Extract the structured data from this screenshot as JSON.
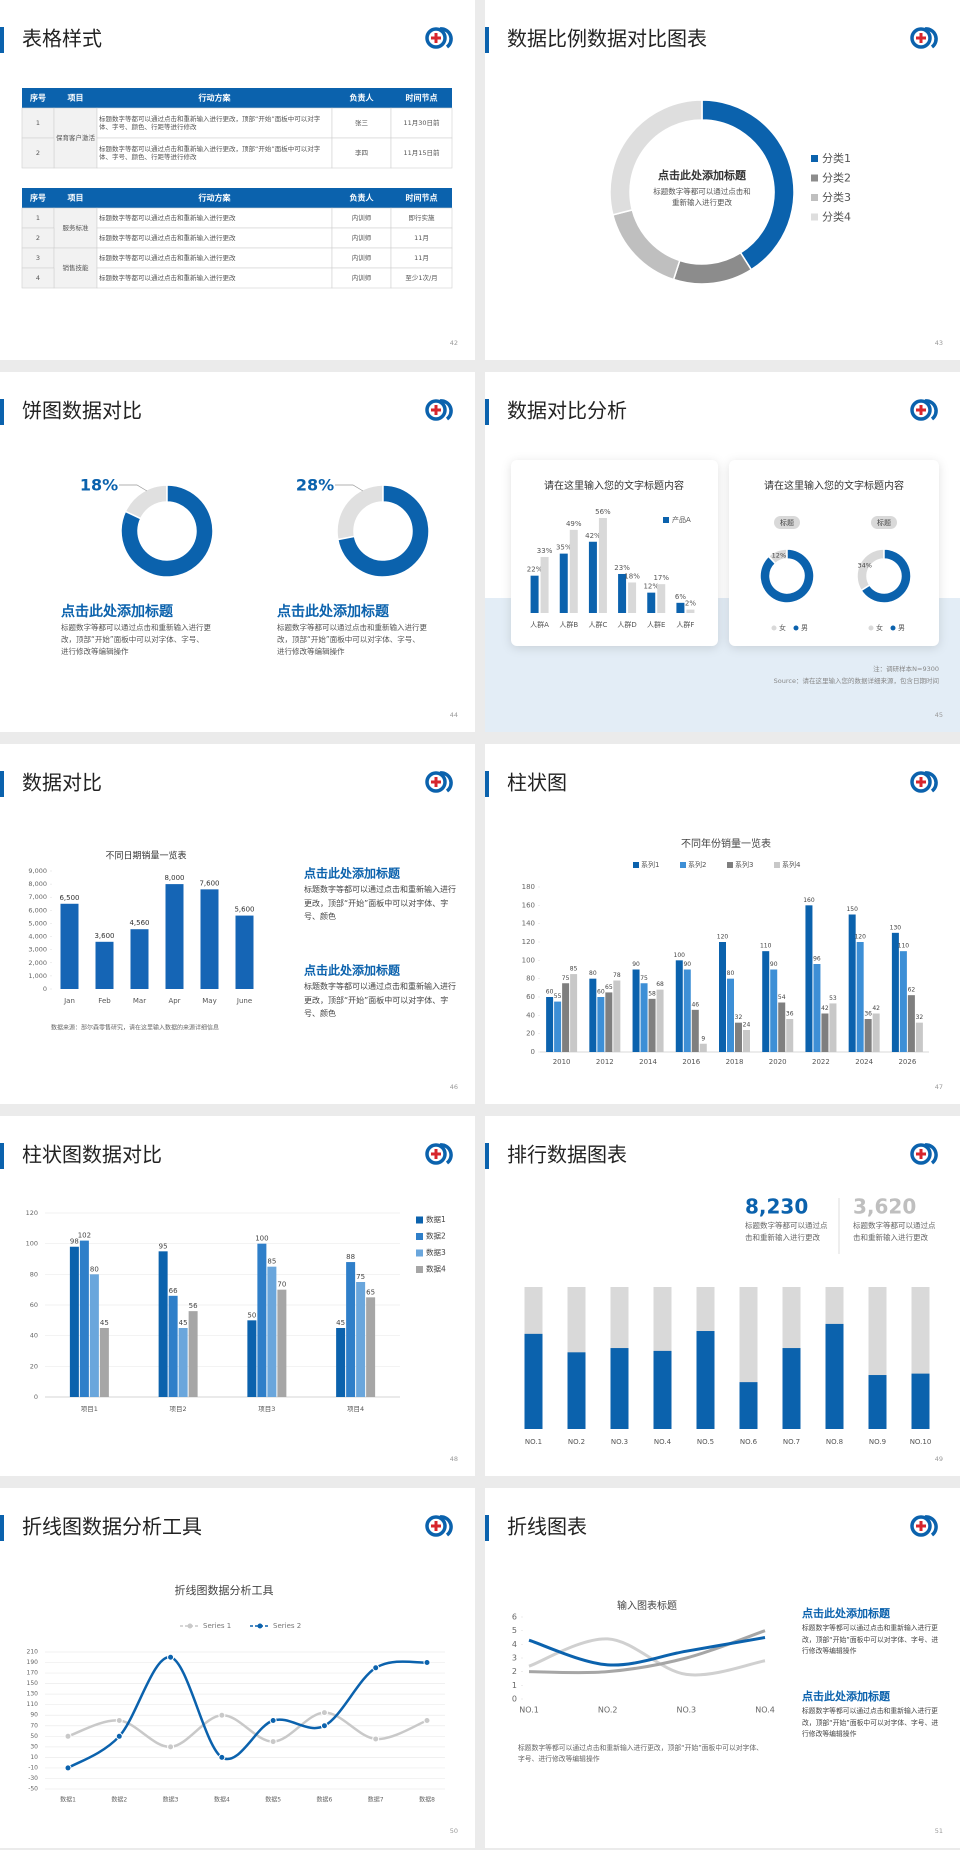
{
  "slides": [
    {
      "title": "表格样式",
      "page": "42",
      "tables": [
        {
          "header": [
            "序号",
            "项目",
            "行动方案",
            "负责人",
            "时间节点"
          ],
          "rows": [
            [
              "1",
              "保育客户激活",
              "标题数字等都可以通过点击和重新输入进行更改，顶部“开始”面板中可以对字体、字号、颜色、行距等进行修改",
              "张三",
              "11月30日前"
            ],
            [
              "2",
              null,
              "标题数字等都可以通过点击和重新输入进行更改，顶部“开始”面板中可以对字体、字号、颜色、行距等进行修改",
              "李四",
              "11月15日前"
            ]
          ]
        },
        {
          "header": [
            "序号",
            "项目",
            "行动方案",
            "负责人",
            "时间节点"
          ],
          "rows": [
            [
              "1",
              "服务标准",
              "标题数字等都可以通过点击和重新输入进行更改",
              "内训师",
              "即行实施"
            ],
            [
              "2",
              null,
              "标题数字等都可以通过点击和重新输入进行更改",
              "内训师",
              "11月"
            ],
            [
              "3",
              "销售技能",
              "标题数字等都可以通过点击和重新输入进行更改",
              "内训师",
              "11月"
            ],
            [
              "4",
              null,
              "标题数字等都可以通过点击和重新输入进行更改",
              "内训师",
              "至少1次/月"
            ]
          ]
        }
      ]
    },
    {
      "title": "数据比例数据对比图表",
      "page": "43",
      "chart": {
        "type": "donut",
        "heading": "点击此处添加标题",
        "text": "标题数字等都可以通过点击和重新输入进行更改",
        "categories": [
          "分类1",
          "分类2",
          "分类3",
          "分类4"
        ],
        "values": [
          41,
          14,
          16,
          29
        ],
        "colors": [
          "#0b62ad",
          "#8c8c8c",
          "#bfbfbf",
          "#dedede"
        ]
      }
    },
    {
      "title": "饼图数据对比",
      "page": "44",
      "charts": [
        {
          "type": "donut",
          "label": "18%",
          "values": [
            18,
            82
          ],
          "colors": [
            "#e0e0e0",
            "#0b62ad"
          ],
          "heading": "点击此处添加标题",
          "text": "标题数字等都可以通过点击和重新输入进行更改，顶部“开始”面板中可以对字体、字号、进行修改等编辑操作"
        },
        {
          "type": "donut",
          "label": "28%",
          "values": [
            28,
            72
          ],
          "colors": [
            "#e0e0e0",
            "#0b62ad"
          ],
          "heading": "点击此处添加标题",
          "text": "标题数字等都可以通过点击和重新输入进行更改，顶部“开始”面板中可以对字体、字号、进行修改等编辑操作"
        }
      ]
    },
    {
      "title": "数据对比分析",
      "page": "45",
      "bar_card": {
        "title": "请在这里输入您的文字标题内容",
        "chart": {
          "type": "bar",
          "categories": [
            "人群A",
            "人群B",
            "人群C",
            "人群D",
            "人群E",
            "人群F"
          ],
          "series": [
            {
              "name": "产品A",
              "color": "#0b62ad",
              "values": [
                22,
                35,
                42,
                23,
                12,
                6
              ],
              "value_labels": [
                "22%",
                "35%",
                "42%",
                "23%",
                "12%",
                "6%"
              ]
            },
            {
              "color": "#d9d9d9",
              "values": [
                33,
                49,
                56,
                18,
                17,
                2
              ],
              "value_labels": [
                "33%",
                "49%",
                "56%",
                "18%",
                "17%",
                "2%"
              ]
            }
          ]
        }
      },
      "donut_card": {
        "title": "请在这里输入您的文字标题内容",
        "categories": [
          "女",
          "男"
        ],
        "colors": [
          "#d9d9d9",
          "#0b62ad"
        ],
        "donuts": [
          {
            "type": "donut",
            "tag": "标题",
            "values": [
              12,
              88
            ],
            "label": "12%"
          },
          {
            "type": "donut",
            "tag": "标题",
            "values": [
              34,
              66
            ],
            "label": "34%"
          }
        ]
      },
      "notes": [
        "注：调研样本N=9300",
        "Source：请在这里输入您的数据详细来源，包含日期时间"
      ]
    },
    {
      "title": "数据对比",
      "page": "46",
      "chart": {
        "type": "bar",
        "title": "不同日期销量一览表",
        "categories": [
          "Jan",
          "Feb",
          "Mar",
          "Apr",
          "May",
          "June"
        ],
        "values": [
          6500,
          3600,
          4560,
          8000,
          7600,
          5600
        ],
        "value_labels": [
          "6,500",
          "3,600",
          "4,560",
          "8,000",
          "7,600",
          "5,600"
        ],
        "color": "#1565b5",
        "ylim": [
          0,
          9000
        ],
        "yticks": [
          0,
          {
            "value": 1000,
            "label": "1,000"
          },
          {
            "value": 2000,
            "label": "2,000"
          },
          {
            "value": 3000,
            "label": "3,000"
          },
          {
            "value": 4000,
            "label": "4,000"
          },
          {
            "value": 5000,
            "label": "5,000"
          },
          {
            "value": 6000,
            "label": "6,000"
          },
          {
            "value": 7000,
            "label": "7,000"
          },
          {
            "value": 8000,
            "label": "8,000"
          },
          {
            "value": 9000,
            "label": "9,000"
          }
        ],
        "grid": false,
        "source": "数据来源：部尔森零售研究，请在这里输入数据的来源详细信息"
      },
      "blocks": [
        {
          "heading": "点击此处添加标题",
          "text": "标题数字等都可以通过点击和重新输入进行更改，顶部“开始”面板中可以对字体、字号、颜色"
        },
        {
          "heading": "点击此处添加标题",
          "text": "标题数字等都可以通过点击和重新输入进行更改，顶部“开始”面板中可以对字体、字号、颜色"
        }
      ]
    },
    {
      "title": "柱状图",
      "page": "47",
      "chart": {
        "type": "bar",
        "title": "不同年份销量一览表",
        "categories": [
          "2010",
          "2012",
          "2014",
          "2016",
          "2018",
          "2020",
          "2022",
          "2024",
          "2026"
        ],
        "series": [
          {
            "name": "系列1",
            "color": "#0b62ad",
            "values": [
              60,
              80,
              90,
              100,
              120,
              110,
              160,
              150,
              130
            ]
          },
          {
            "name": "系列2",
            "color": "#3d8fd6",
            "values": [
              55,
              60,
              75,
              90,
              80,
              90,
              96,
              120,
              110
            ]
          },
          {
            "name": "系列3",
            "color": "#7f7f7f",
            "values": [
              75,
              65,
              58,
              46,
              32,
              54,
              42,
              36,
              62
            ]
          },
          {
            "name": "系列4",
            "color": "#c8c8c8",
            "values": [
              85,
              78,
              68,
              9,
              24,
              36,
              53,
              42,
              32
            ]
          }
        ],
        "ylim": [
          0,
          180
        ],
        "yticks": [
          0,
          20,
          40,
          60,
          80,
          100,
          120,
          140,
          160,
          180
        ],
        "grid": false
      }
    },
    {
      "title": "柱状图数据对比",
      "page": "48",
      "chart": {
        "type": "bar",
        "categories": [
          "项目1",
          "项目2",
          "项目3",
          "项目4"
        ],
        "series": [
          {
            "name": "数据1",
            "color": "#0b62ad",
            "values": [
              98,
              95,
              50,
              45
            ]
          },
          {
            "name": "数据2",
            "color": "#2f7fc9",
            "values": [
              102,
              66,
              100,
              88
            ]
          },
          {
            "name": "数据3",
            "color": "#6aa6dc",
            "values": [
              80,
              45,
              85,
              75
            ]
          },
          {
            "name": "数据4",
            "color": "#a6a6a6",
            "values": [
              45,
              56,
              70,
              65
            ]
          }
        ],
        "ylim": [
          0,
          120
        ],
        "yticks": [
          0,
          20,
          40,
          60,
          80,
          100,
          120
        ],
        "grid": true
      }
    },
    {
      "title": "排行数据图表",
      "page": "49",
      "stats": [
        {
          "number": "8,230",
          "color": "#0b62ad",
          "text": "标题数字等都可以通过点击和重新输入进行更改"
        },
        {
          "number": "3,620",
          "color": "#bfbfbf",
          "text": "标题数字等都可以通过点击和重新输入进行更改"
        }
      ],
      "chart": {
        "type": "bar",
        "categories": [
          "NO.1",
          "NO.2",
          "NO.3",
          "NO.4",
          "NO.5",
          "NO.6",
          "NO.7",
          "NO.8",
          "NO.9",
          "NO.10"
        ],
        "values": [
          67,
          54,
          57,
          55,
          69,
          33,
          57,
          74,
          38,
          39
        ],
        "color": "#0b62ad",
        "track_color": "#d9d9d9",
        "ylim": [
          0,
          100
        ]
      }
    },
    {
      "title": "折线图数据分析工具",
      "page": "50",
      "chart": {
        "type": "line",
        "title": "折线图数据分析工具",
        "categories": [
          "数据1",
          "数据2",
          "数据3",
          "数据4",
          "数据5",
          "数据6",
          "数据7",
          "数据8"
        ],
        "series": [
          {
            "name": "Series 1",
            "color": "#c9c9c9",
            "values": [
              50,
              80,
              30,
              90,
              40,
              95,
              45,
              80
            ]
          },
          {
            "name": "Series 2",
            "color": "#0b62ad",
            "values": [
              -10,
              50,
              200,
              10,
              80,
              70,
              180,
              190
            ]
          }
        ],
        "ylim": [
          -50,
          210
        ],
        "yticks": [
          -50,
          -30,
          -10,
          10,
          30,
          50,
          70,
          90,
          110,
          130,
          150,
          170,
          190,
          210
        ],
        "grid": true
      }
    },
    {
      "title": "折线图表",
      "page": "51",
      "chart": {
        "type": "line",
        "title": "输入图表标题",
        "categories": [
          "NO.1",
          "NO.2",
          "NO.3",
          "NO.4"
        ],
        "series": [
          {
            "color": "#d0d0d0",
            "values": [
              2.4,
              4.4,
              1.8,
              2.8
            ]
          },
          {
            "color": "#a6a6a6",
            "values": [
              2,
              2,
              3,
              5
            ]
          },
          {
            "color": "#0b62ad",
            "values": [
              4.3,
              2.5,
              3.5,
              4.5
            ]
          }
        ],
        "ylim": [
          0,
          6
        ],
        "yticks": [
          0,
          1,
          2,
          3,
          4,
          5,
          6
        ],
        "grid": false
      },
      "blocks": [
        {
          "heading": "点击此处添加标题",
          "text": "标题数字等都可以通过点击和重新输入进行更改，顶部“开始”面板中可以对字体、字号、进行修改等编辑操作"
        },
        {
          "heading": "点击此处添加标题",
          "text": "标题数字等都可以通过点击和重新输入进行更改，顶部“开始”面板中可以对字体、字号、进行修改等编辑操作"
        }
      ],
      "note": "标题数字等都可以通过点击和重新输入进行更改，顶部“开始”面板中可以对字体、字号、进行修改等编辑操作"
    }
  ]
}
